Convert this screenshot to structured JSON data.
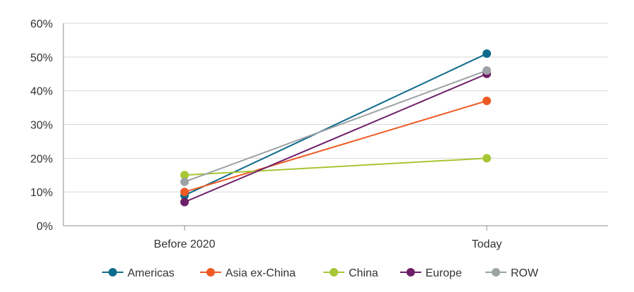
{
  "chart_data": {
    "type": "line",
    "title": "",
    "xlabel": "",
    "ylabel": "",
    "categories": [
      "Before 2020",
      "Today"
    ],
    "ylim": [
      0,
      60
    ],
    "yticks": [
      0,
      10,
      20,
      30,
      40,
      50,
      60
    ],
    "ytick_labels": [
      "0%",
      "10%",
      "20%",
      "30%",
      "40%",
      "50%",
      "60%"
    ],
    "grid": "horizontal",
    "legend_position": "bottom",
    "series": [
      {
        "name": "Americas",
        "color": "#0f6b8c",
        "values": [
          9,
          51
        ]
      },
      {
        "name": "Asia ex-China",
        "color": "#ef5a24",
        "values": [
          10,
          37
        ]
      },
      {
        "name": "China",
        "color": "#a7c634",
        "values": [
          15,
          20
        ]
      },
      {
        "name": "Europe",
        "color": "#6e1f69",
        "values": [
          7,
          45
        ]
      },
      {
        "name": "ROW",
        "color": "#9ca2a5",
        "values": [
          13,
          46
        ]
      }
    ]
  }
}
